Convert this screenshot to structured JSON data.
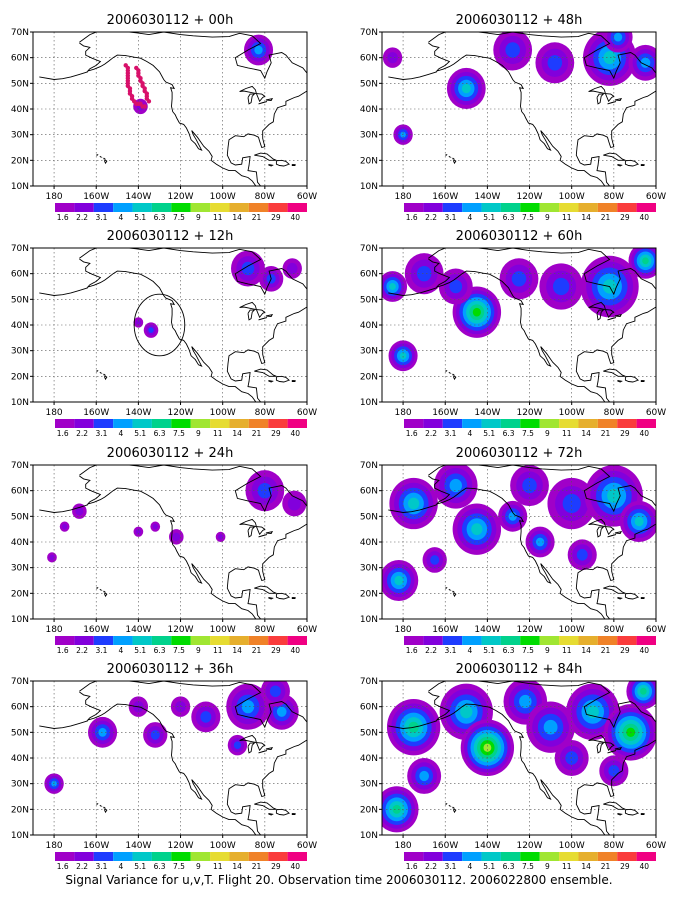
{
  "caption": "Signal Variance for u,v,T. Flight 20. Observation time 2006030112. 2006022800 ensemble.",
  "colorbar": {
    "labels": [
      "1.6",
      "2.2",
      "3.1",
      "4",
      "5.1",
      "6.3",
      "7.5",
      "9",
      "11",
      "14",
      "21",
      "29",
      "40"
    ],
    "colors": [
      "#a000c8",
      "#8200dc",
      "#1e3cff",
      "#00a0ff",
      "#00c8c8",
      "#00d28c",
      "#00dc00",
      "#a0e632",
      "#e6dc32",
      "#e6af2d",
      "#f08228",
      "#fa3c3c",
      "#f00082"
    ]
  },
  "chart_data": [
    {
      "type": "heatmap",
      "title": "2006030112 + 00h",
      "xticks": [
        "180",
        "160W",
        "140W",
        "120W",
        "100W",
        "80W",
        "60W"
      ],
      "yticks": [
        "10N",
        "20N",
        "30N",
        "40N",
        "50N",
        "60N",
        "70N"
      ],
      "xlim": [
        -190,
        -60
      ],
      "ylim": [
        10,
        70
      ],
      "blobs": [
        {
          "lon": -83,
          "lat": 63,
          "level": 3,
          "r": 6
        },
        {
          "lon": -139,
          "lat": 41,
          "level": 1,
          "r": 3
        }
      ],
      "observation_points": [
        [
          -146,
          57
        ],
        [
          -145,
          56
        ],
        [
          -145,
          55
        ],
        [
          -145,
          54
        ],
        [
          -145,
          53
        ],
        [
          -145,
          52
        ],
        [
          -145,
          51
        ],
        [
          -145,
          50
        ],
        [
          -145,
          49
        ],
        [
          -144,
          48
        ],
        [
          -144,
          47
        ],
        [
          -144,
          46
        ],
        [
          -143,
          45
        ],
        [
          -143,
          44
        ],
        [
          -142,
          43
        ],
        [
          -141,
          42
        ],
        [
          -140,
          42
        ],
        [
          -139,
          42
        ],
        [
          -138,
          41
        ],
        [
          -137,
          41
        ],
        [
          -141,
          56
        ],
        [
          -140,
          55
        ],
        [
          -140,
          54
        ],
        [
          -140,
          53
        ],
        [
          -139,
          52
        ],
        [
          -139,
          51
        ],
        [
          -138,
          50
        ],
        [
          -138,
          49
        ],
        [
          -137,
          48
        ],
        [
          -137,
          47
        ],
        [
          -136,
          46
        ],
        [
          -136,
          45
        ],
        [
          -136,
          44
        ],
        [
          -135,
          43
        ]
      ]
    },
    {
      "type": "heatmap",
      "title": "2006030112 + 12h",
      "xticks": [
        "180",
        "160W",
        "140W",
        "120W",
        "100W",
        "80W",
        "60W"
      ],
      "yticks": [
        "10N",
        "20N",
        "30N",
        "40N",
        "50N",
        "60N",
        "70N"
      ],
      "xlim": [
        -190,
        -60
      ],
      "ylim": [
        10,
        70
      ],
      "blobs": [
        {
          "lon": -88,
          "lat": 62,
          "level": 2,
          "r": 7
        },
        {
          "lon": -77,
          "lat": 58,
          "level": 2,
          "r": 5
        },
        {
          "lon": -67,
          "lat": 62,
          "level": 1,
          "r": 4
        },
        {
          "lon": -134,
          "lat": 38,
          "level": 2,
          "r": 3
        },
        {
          "lon": -140,
          "lat": 41,
          "level": 1,
          "r": 2
        }
      ],
      "circle": {
        "lon": -130,
        "lat": 40,
        "r_deg": 10
      }
    },
    {
      "type": "heatmap",
      "title": "2006030112 + 24h",
      "xticks": [
        "180",
        "160W",
        "140W",
        "120W",
        "100W",
        "80W",
        "60W"
      ],
      "yticks": [
        "10N",
        "20N",
        "30N",
        "40N",
        "50N",
        "60N",
        "70N"
      ],
      "xlim": [
        -190,
        -60
      ],
      "ylim": [
        10,
        70
      ],
      "blobs": [
        {
          "lon": -168,
          "lat": 52,
          "level": 1,
          "r": 3
        },
        {
          "lon": -175,
          "lat": 46,
          "level": 1,
          "r": 2
        },
        {
          "lon": -181,
          "lat": 34,
          "level": 1,
          "r": 2
        },
        {
          "lon": -140,
          "lat": 44,
          "level": 1,
          "r": 2
        },
        {
          "lon": -132,
          "lat": 46,
          "level": 1,
          "r": 2
        },
        {
          "lon": -122,
          "lat": 42,
          "level": 1,
          "r": 3
        },
        {
          "lon": -101,
          "lat": 42,
          "level": 1,
          "r": 2
        },
        {
          "lon": -80,
          "lat": 60,
          "level": 2,
          "r": 8
        },
        {
          "lon": -66,
          "lat": 55,
          "level": 1,
          "r": 5
        }
      ]
    },
    {
      "type": "heatmap",
      "title": "2006030112 + 36h",
      "xticks": [
        "180",
        "160W",
        "140W",
        "120W",
        "100W",
        "80W",
        "60W"
      ],
      "yticks": [
        "10N",
        "20N",
        "30N",
        "40N",
        "50N",
        "60N",
        "70N"
      ],
      "xlim": [
        -190,
        -60
      ],
      "ylim": [
        10,
        70
      ],
      "blobs": [
        {
          "lon": -157,
          "lat": 50,
          "level": 3,
          "r": 6
        },
        {
          "lon": -180,
          "lat": 30,
          "level": 3,
          "r": 4
        },
        {
          "lon": -132,
          "lat": 49,
          "level": 2,
          "r": 5
        },
        {
          "lon": -140,
          "lat": 60,
          "level": 1,
          "r": 4
        },
        {
          "lon": -120,
          "lat": 60,
          "level": 1,
          "r": 4
        },
        {
          "lon": -108,
          "lat": 56,
          "level": 2,
          "r": 6
        },
        {
          "lon": -88,
          "lat": 60,
          "level": 3,
          "r": 9
        },
        {
          "lon": -72,
          "lat": 58,
          "level": 3,
          "r": 7
        },
        {
          "lon": -75,
          "lat": 66,
          "level": 2,
          "r": 6
        },
        {
          "lon": -93,
          "lat": 45,
          "level": 2,
          "r": 4
        }
      ]
    },
    {
      "type": "heatmap",
      "title": "2006030112 + 48h",
      "xticks": [
        "180",
        "160W",
        "140W",
        "120W",
        "100W",
        "80W",
        "60W"
      ],
      "yticks": [
        "10N",
        "20N",
        "30N",
        "40N",
        "50N",
        "60N",
        "70N"
      ],
      "xlim": [
        -190,
        -60
      ],
      "ylim": [
        10,
        70
      ],
      "blobs": [
        {
          "lon": -150,
          "lat": 48,
          "level": 4,
          "r": 8
        },
        {
          "lon": -180,
          "lat": 30,
          "level": 3,
          "r": 4
        },
        {
          "lon": -185,
          "lat": 60,
          "level": 1,
          "r": 4
        },
        {
          "lon": -128,
          "lat": 63,
          "level": 2,
          "r": 8
        },
        {
          "lon": -108,
          "lat": 58,
          "level": 2,
          "r": 8
        },
        {
          "lon": -82,
          "lat": 60,
          "level": 4,
          "r": 11
        },
        {
          "lon": -65,
          "lat": 58,
          "level": 3,
          "r": 7
        },
        {
          "lon": -78,
          "lat": 68,
          "level": 3,
          "r": 6
        }
      ]
    },
    {
      "type": "heatmap",
      "title": "2006030112 + 60h",
      "xticks": [
        "180",
        "160W",
        "140W",
        "120W",
        "100W",
        "80W",
        "60W"
      ],
      "yticks": [
        "10N",
        "20N",
        "30N",
        "40N",
        "50N",
        "60N",
        "70N"
      ],
      "xlim": [
        -190,
        -60
      ],
      "ylim": [
        10,
        70
      ],
      "blobs": [
        {
          "lon": -185,
          "lat": 55,
          "level": 4,
          "r": 6
        },
        {
          "lon": -170,
          "lat": 60,
          "level": 2,
          "r": 8
        },
        {
          "lon": -145,
          "lat": 45,
          "level": 6,
          "r": 10
        },
        {
          "lon": -155,
          "lat": 55,
          "level": 2,
          "r": 7
        },
        {
          "lon": -180,
          "lat": 28,
          "level": 4,
          "r": 6
        },
        {
          "lon": -125,
          "lat": 58,
          "level": 2,
          "r": 8
        },
        {
          "lon": -105,
          "lat": 55,
          "level": 2,
          "r": 9
        },
        {
          "lon": -82,
          "lat": 55,
          "level": 4,
          "r": 12
        },
        {
          "lon": -65,
          "lat": 65,
          "level": 5,
          "r": 7
        }
      ]
    },
    {
      "type": "heatmap",
      "title": "2006030112 + 72h",
      "xticks": [
        "180",
        "160W",
        "140W",
        "120W",
        "100W",
        "80W",
        "60W"
      ],
      "yticks": [
        "10N",
        "20N",
        "30N",
        "40N",
        "50N",
        "60N",
        "70N"
      ],
      "xlim": [
        -190,
        -60
      ],
      "ylim": [
        10,
        70
      ],
      "blobs": [
        {
          "lon": -175,
          "lat": 55,
          "level": 4,
          "r": 10
        },
        {
          "lon": -155,
          "lat": 62,
          "level": 3,
          "r": 9
        },
        {
          "lon": -145,
          "lat": 45,
          "level": 4,
          "r": 10
        },
        {
          "lon": -128,
          "lat": 50,
          "level": 3,
          "r": 6
        },
        {
          "lon": -182,
          "lat": 25,
          "level": 4,
          "r": 8
        },
        {
          "lon": -165,
          "lat": 33,
          "level": 2,
          "r": 5
        },
        {
          "lon": -120,
          "lat": 62,
          "level": 2,
          "r": 8
        },
        {
          "lon": -115,
          "lat": 40,
          "level": 3,
          "r": 6
        },
        {
          "lon": -100,
          "lat": 55,
          "level": 2,
          "r": 10
        },
        {
          "lon": -80,
          "lat": 58,
          "level": 4,
          "r": 12
        },
        {
          "lon": -68,
          "lat": 48,
          "level": 4,
          "r": 8
        },
        {
          "lon": -95,
          "lat": 35,
          "level": 2,
          "r": 6
        }
      ]
    },
    {
      "type": "heatmap",
      "title": "2006030112 + 84h",
      "xticks": [
        "180",
        "160W",
        "140W",
        "120W",
        "100W",
        "80W",
        "60W"
      ],
      "yticks": [
        "10N",
        "20N",
        "30N",
        "40N",
        "50N",
        "60N",
        "70N"
      ],
      "xlim": [
        -190,
        -60
      ],
      "ylim": [
        10,
        70
      ],
      "blobs": [
        {
          "lon": -175,
          "lat": 52,
          "level": 5,
          "r": 11
        },
        {
          "lon": -150,
          "lat": 58,
          "level": 4,
          "r": 11
        },
        {
          "lon": -140,
          "lat": 44,
          "level": 7,
          "r": 11
        },
        {
          "lon": -183,
          "lat": 20,
          "level": 5,
          "r": 9
        },
        {
          "lon": -170,
          "lat": 33,
          "level": 3,
          "r": 7
        },
        {
          "lon": -122,
          "lat": 62,
          "level": 3,
          "r": 9
        },
        {
          "lon": -110,
          "lat": 52,
          "level": 3,
          "r": 10
        },
        {
          "lon": -90,
          "lat": 58,
          "level": 4,
          "r": 11
        },
        {
          "lon": -72,
          "lat": 50,
          "level": 6,
          "r": 11
        },
        {
          "lon": -66,
          "lat": 66,
          "level": 5,
          "r": 7
        },
        {
          "lon": -100,
          "lat": 40,
          "level": 2,
          "r": 7
        },
        {
          "lon": -80,
          "lat": 35,
          "level": 2,
          "r": 6
        }
      ]
    }
  ]
}
